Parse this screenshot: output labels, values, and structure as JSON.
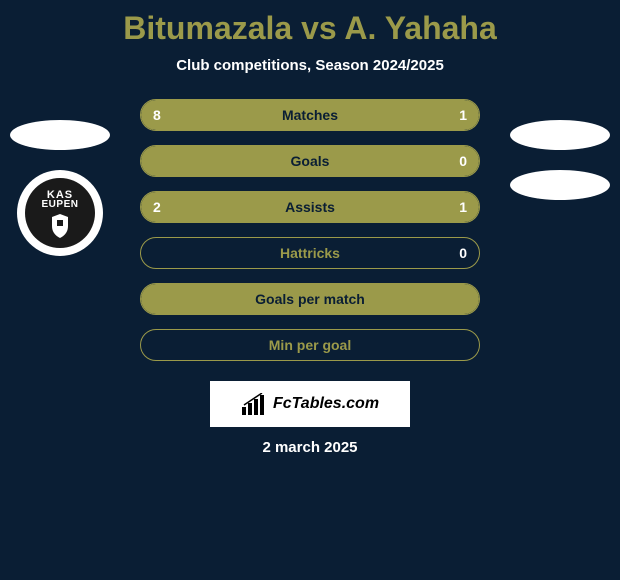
{
  "title": "Bitumazala vs A. Yahaha",
  "subtitle": "Club competitions, Season 2024/2025",
  "club_badge": {
    "line1": "KAS",
    "line2": "EUPEN"
  },
  "stats": [
    {
      "label": "Matches",
      "left_value": "8",
      "right_value": "1",
      "left_fill_pct": 78,
      "right_fill_pct": 22,
      "label_color": "#0a1e34"
    },
    {
      "label": "Goals",
      "left_value": "",
      "right_value": "0",
      "left_fill_pct": 100,
      "right_fill_pct": 0,
      "label_color": "#0a1e34"
    },
    {
      "label": "Assists",
      "left_value": "2",
      "right_value": "1",
      "left_fill_pct": 63,
      "right_fill_pct": 37,
      "label_color": "#0a1e34"
    },
    {
      "label": "Hattricks",
      "left_value": "",
      "right_value": "0",
      "left_fill_pct": 0,
      "right_fill_pct": 0,
      "label_color": "#9b9a4a"
    },
    {
      "label": "Goals per match",
      "left_value": "",
      "right_value": "",
      "left_fill_pct": 100,
      "right_fill_pct": 0,
      "label_color": "#0a1e34"
    },
    {
      "label": "Min per goal",
      "left_value": "",
      "right_value": "",
      "left_fill_pct": 0,
      "right_fill_pct": 0,
      "label_color": "#9b9a4a"
    }
  ],
  "branding": "FcTables.com",
  "date": "2 march 2025",
  "colors": {
    "background": "#0a1e34",
    "accent": "#9b9a4a",
    "text": "#ffffff",
    "branding_bg": "#ffffff",
    "branding_text": "#000000"
  }
}
